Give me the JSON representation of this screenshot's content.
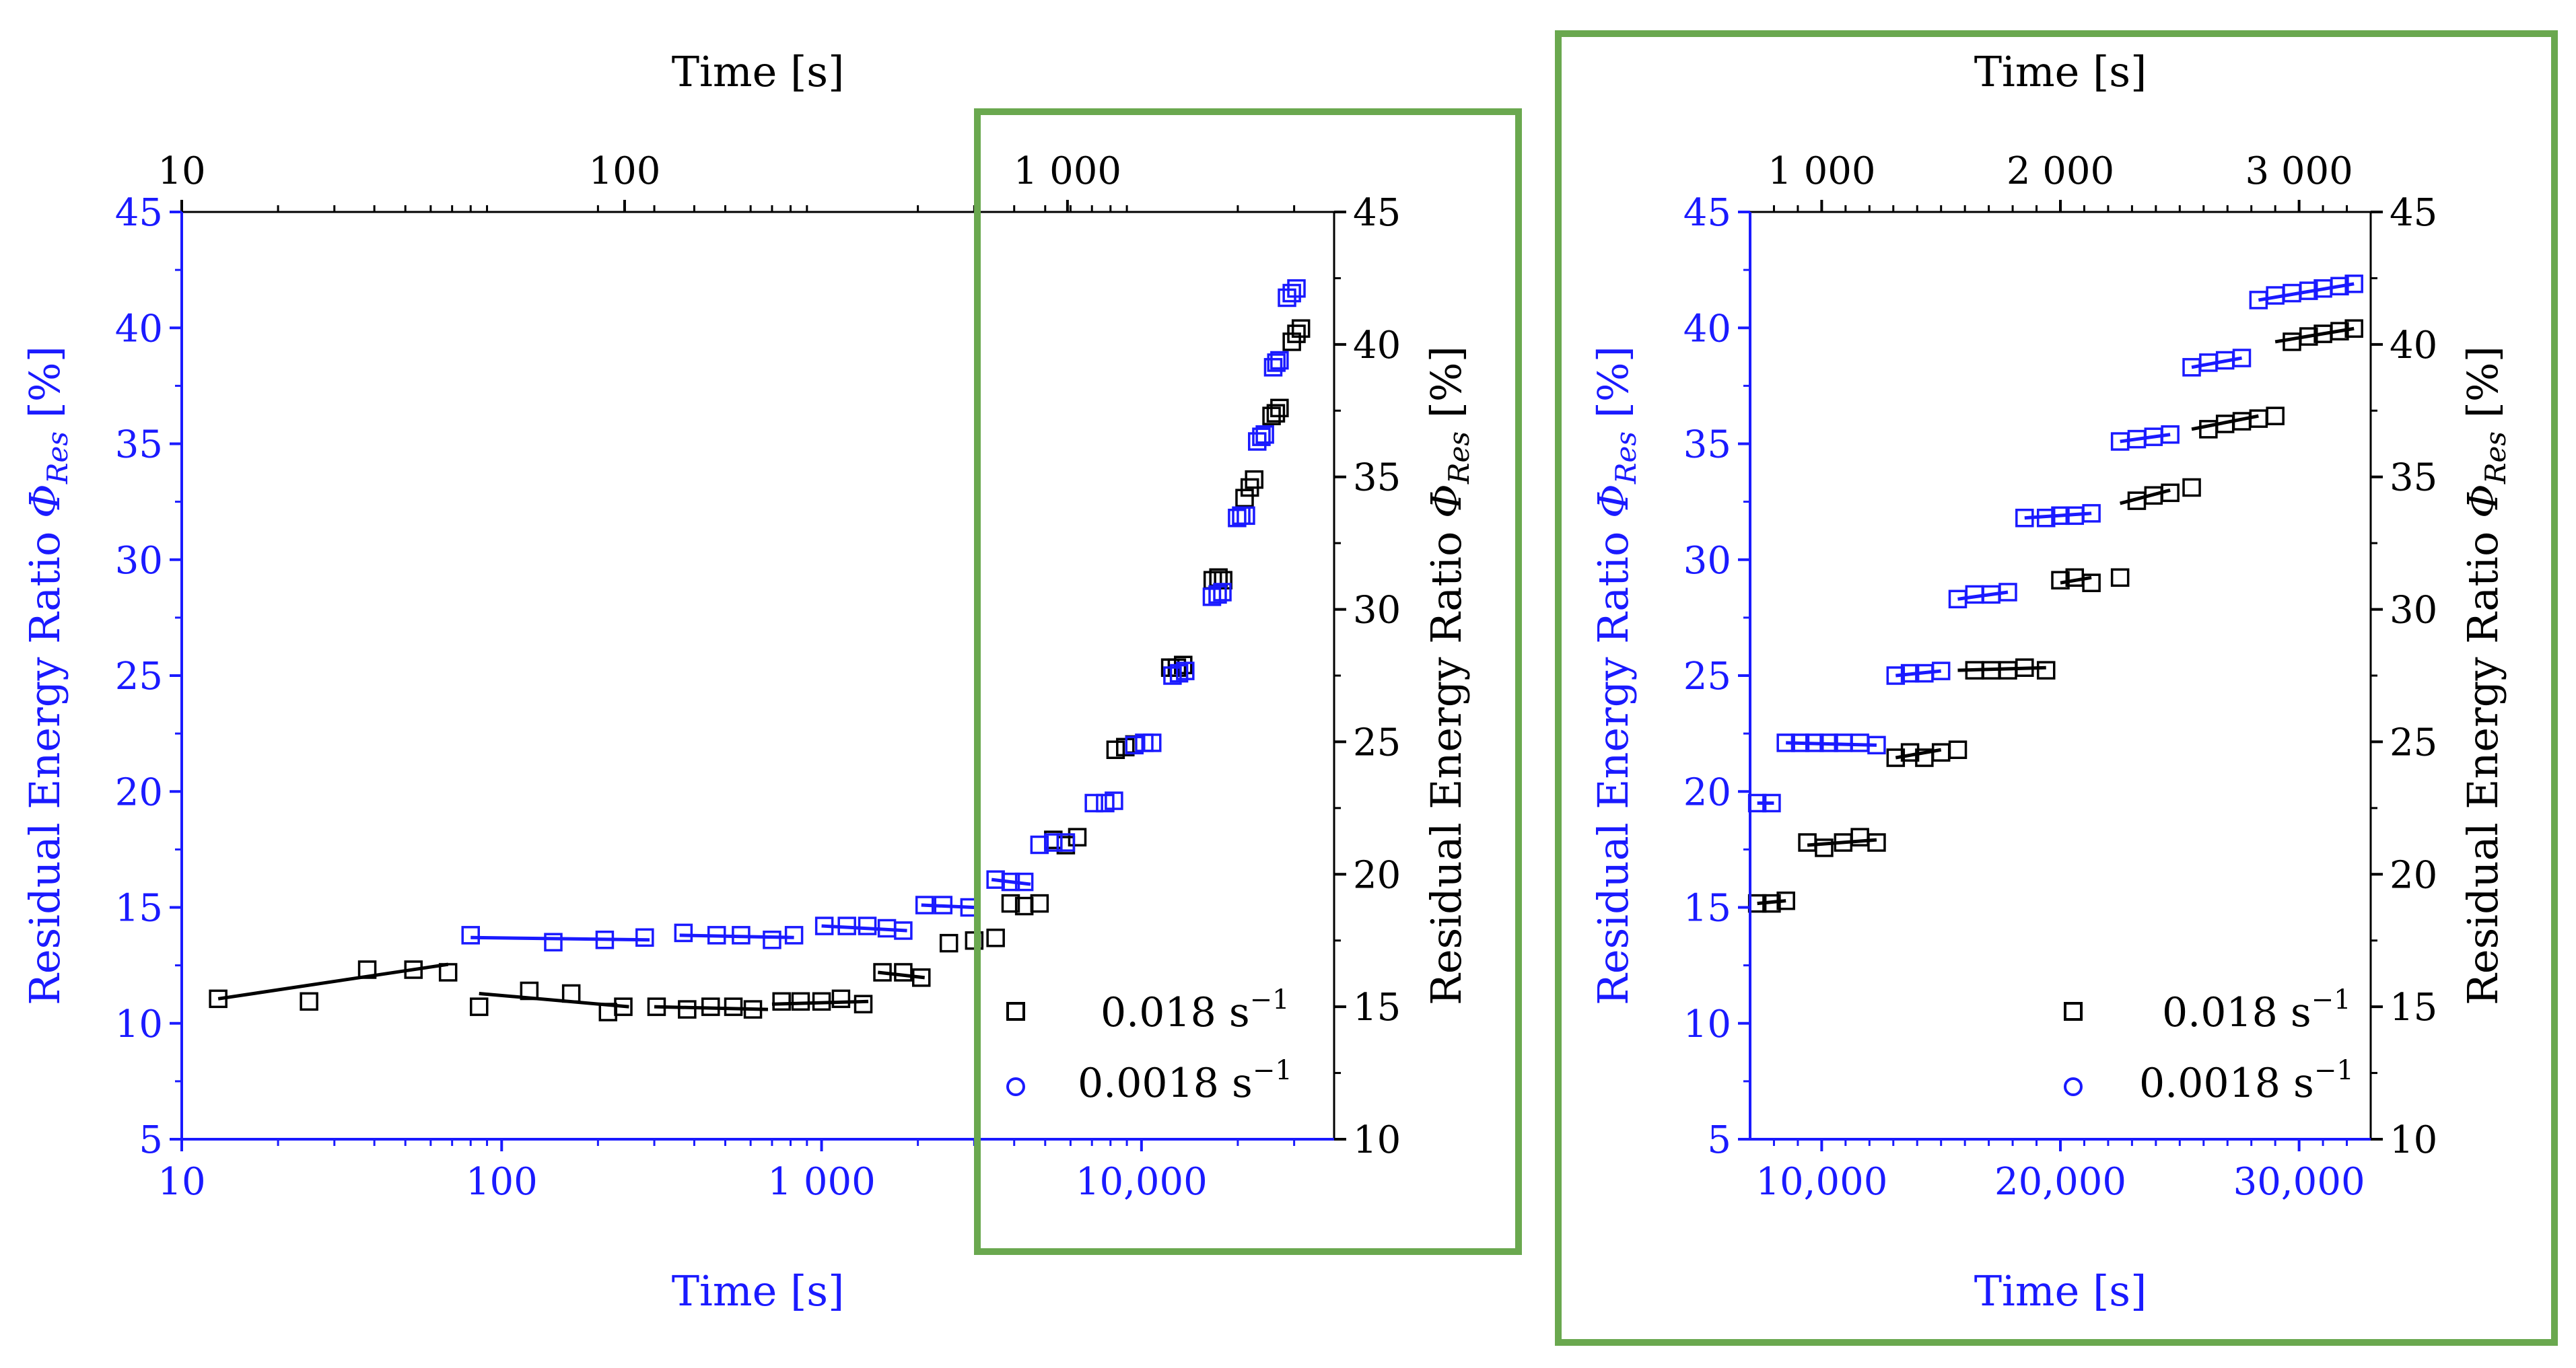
{
  "colors": {
    "blue": "#1a1aff",
    "black": "#000000",
    "highlight": "#6aa84f"
  },
  "chart_data": [
    {
      "id": "left",
      "type": "scatter",
      "scale": "log",
      "xlim": [
        10,
        40000
      ],
      "xlim_top": [
        10,
        4000
      ],
      "ylim_left": [
        5,
        45
      ],
      "ylim_right": [
        10,
        45
      ],
      "bottom_ticks": [
        10,
        100,
        1000,
        10000
      ],
      "bottom_tick_labels": [
        "10",
        "100",
        "1 000",
        "10,000"
      ],
      "top_ticks": [
        10,
        100,
        1000
      ],
      "top_tick_labels": [
        "10",
        "100",
        "1 000"
      ],
      "left_ticks": [
        5,
        10,
        15,
        20,
        25,
        30,
        35,
        40,
        45
      ],
      "right_ticks": [
        10,
        15,
        20,
        25,
        30,
        35,
        40,
        45
      ],
      "xlabel_bottom": "Time [s]",
      "xlabel_top": "Time [s]",
      "ylabel_left_main": "Residual Energy Ratio ",
      "ylabel_left_symbol": "Φ",
      "ylabel_left_sub": "Res",
      "ylabel_left_unit": " [%]",
      "ylabel_right_main": "Residual Energy Ratio ",
      "ylabel_right_symbol": "Φ",
      "ylabel_right_sub": "Res",
      "ylabel_right_unit": " [%]",
      "legend": [
        {
          "label": "0.018 s",
          "sup": "−1",
          "marker": "square",
          "color": "black"
        },
        {
          "label": "0.0018 s",
          "sup": "−1",
          "marker": "circle",
          "color": "blue"
        }
      ],
      "series": [
        {
          "name": "0.018 s⁻¹",
          "color": "black",
          "axis": "right",
          "x": [
            13,
            25,
            38,
            53,
            68,
            85,
            122,
            165,
            215,
            240,
            305,
            380,
            450,
            530,
            610,
            750,
            860,
            1000,
            1150,
            1350,
            1550,
            1800,
            2050,
            2500,
            3000,
            3500,
            3900,
            4300,
            4800,
            5300,
            5800,
            6300,
            8300,
            8900,
            9500,
            12300,
            12900,
            13500,
            16700,
            17400,
            18000,
            21000,
            21800,
            22500,
            25500,
            26300,
            27000,
            29500,
            30500,
            31500
          ],
          "y": [
            15.3,
            15.2,
            16.4,
            16.4,
            16.3,
            15.0,
            15.6,
            15.5,
            14.8,
            15.0,
            15.0,
            14.9,
            15.0,
            15.0,
            14.9,
            15.2,
            15.2,
            15.2,
            15.3,
            15.1,
            16.3,
            16.3,
            16.1,
            17.4,
            17.5,
            17.6,
            18.9,
            18.8,
            18.9,
            21.3,
            21.1,
            21.4,
            24.7,
            24.8,
            24.9,
            27.8,
            27.8,
            27.9,
            31.1,
            31.2,
            31.1,
            34.2,
            34.6,
            34.9,
            37.3,
            37.4,
            37.6,
            40.1,
            40.4,
            40.6
          ],
          "fit_segments": [
            [
              [
                13,
                15.3
              ],
              [
                68,
                16.6
              ]
            ],
            [
              [
                85,
                15.5
              ],
              [
                250,
                15.0
              ]
            ],
            [
              [
                300,
                15.0
              ],
              [
                680,
                14.9
              ]
            ],
            [
              [
                700,
                15.1
              ],
              [
                1400,
                15.2
              ]
            ],
            [
              [
                1500,
                16.3
              ],
              [
                2100,
                16.1
              ]
            ]
          ]
        },
        {
          "name": "0.0018 s⁻¹",
          "color": "blue",
          "axis": "left",
          "x": [
            80,
            145,
            210,
            280,
            370,
            470,
            560,
            700,
            820,
            1020,
            1200,
            1390,
            1600,
            1800,
            2100,
            2400,
            2900,
            3500,
            3900,
            4300,
            4800,
            5300,
            5800,
            7100,
            7700,
            8200,
            9500,
            10200,
            10800,
            12500,
            13100,
            13700,
            16600,
            17300,
            17900,
            19900,
            20500,
            21200,
            23000,
            23700,
            24300,
            25800,
            26400,
            27000,
            28500,
            29500,
            30500
          ],
          "y": [
            13.8,
            13.5,
            13.6,
            13.7,
            13.9,
            13.8,
            13.8,
            13.6,
            13.8,
            14.2,
            14.2,
            14.2,
            14.1,
            14.0,
            15.1,
            15.1,
            15.0,
            16.2,
            16.1,
            16.1,
            17.7,
            17.8,
            17.8,
            19.5,
            19.5,
            19.6,
            22.0,
            22.1,
            22.1,
            25.0,
            25.1,
            25.2,
            28.4,
            28.5,
            28.6,
            31.8,
            31.9,
            31.9,
            35.1,
            35.3,
            35.4,
            38.3,
            38.5,
            38.6,
            41.3,
            41.5,
            41.7
          ],
          "fit_segments": [
            [
              [
                80,
                13.7
              ],
              [
                290,
                13.6
              ]
            ],
            [
              [
                360,
                13.8
              ],
              [
                820,
                13.7
              ]
            ],
            [
              [
                1000,
                14.2
              ],
              [
                1850,
                14.0
              ]
            ],
            [
              [
                2050,
                15.1
              ],
              [
                3000,
                15.0
              ]
            ],
            [
              [
                3400,
                16.2
              ],
              [
                4500,
                16.0
              ]
            ]
          ]
        }
      ]
    },
    {
      "id": "right",
      "type": "scatter",
      "scale": "linear",
      "xlim": [
        7000,
        33000
      ],
      "ylim_left": [
        5,
        45
      ],
      "ylim_right": [
        10,
        45
      ],
      "bottom_ticks": [
        10000,
        20000,
        30000
      ],
      "bottom_tick_labels": [
        "10,000",
        "20,000",
        "30,000"
      ],
      "top_tick_labels": [
        "1 000",
        "2 000",
        "3 000"
      ],
      "left_ticks": [
        5,
        10,
        15,
        20,
        25,
        30,
        35,
        40,
        45
      ],
      "right_ticks": [
        10,
        15,
        20,
        25,
        30,
        35,
        40,
        45
      ],
      "xlabel_bottom": "Time [s]",
      "xlabel_top": "Time [s]",
      "ylabel_left_main": "Residual Energy Ratio ",
      "ylabel_left_symbol": "Φ",
      "ylabel_left_sub": "Res",
      "ylabel_left_unit": " [%]",
      "ylabel_right_main": "Residual Energy Ratio ",
      "ylabel_right_symbol": "Φ",
      "ylabel_right_sub": "Res",
      "ylabel_right_unit": " [%]",
      "legend": [
        {
          "label": "0.018 s",
          "sup": "−1",
          "marker": "square",
          "color": "black"
        },
        {
          "label": "0.0018 s",
          "sup": "−1",
          "marker": "circle",
          "color": "blue"
        }
      ],
      "series": [
        {
          "name": "0.018 s⁻¹",
          "color": "black",
          "axis": "right",
          "x": [
            7300,
            7900,
            8500,
            9400,
            10100,
            10900,
            11600,
            12300,
            13100,
            13700,
            14300,
            15000,
            15700,
            16400,
            17100,
            17800,
            18500,
            19400,
            20000,
            20600,
            21300,
            22500,
            23200,
            23900,
            24600,
            25500,
            26200,
            26900,
            27600,
            28300,
            29000,
            29700,
            30400,
            31000,
            31700,
            32300
          ],
          "y": [
            18.9,
            18.9,
            19.0,
            21.2,
            21.0,
            21.2,
            21.4,
            21.2,
            24.4,
            24.6,
            24.4,
            24.6,
            24.7,
            27.7,
            27.7,
            27.7,
            27.8,
            27.7,
            31.1,
            31.2,
            31.0,
            31.2,
            34.1,
            34.3,
            34.4,
            34.6,
            36.8,
            37.0,
            37.1,
            37.2,
            37.3,
            40.1,
            40.3,
            40.4,
            40.5,
            40.6
          ],
          "fit_segments": [
            [
              [
                7300,
                18.9
              ],
              [
                8500,
                19.0
              ]
            ],
            [
              [
                9400,
                21.1
              ],
              [
                12300,
                21.3
              ]
            ],
            [
              [
                13100,
                24.4
              ],
              [
                15000,
                24.7
              ]
            ],
            [
              [
                15700,
                27.7
              ],
              [
                19400,
                27.8
              ]
            ],
            [
              [
                20000,
                31.0
              ],
              [
                21300,
                31.2
              ]
            ],
            [
              [
                22500,
                34.0
              ],
              [
                24600,
                34.5
              ]
            ],
            [
              [
                25500,
                36.8
              ],
              [
                28300,
                37.3
              ]
            ],
            [
              [
                29000,
                40.1
              ],
              [
                32300,
                40.6
              ]
            ]
          ]
        },
        {
          "name": "0.0018 s⁻¹",
          "color": "blue",
          "axis": "left",
          "x": [
            7300,
            7900,
            8500,
            9100,
            9700,
            10300,
            10900,
            11600,
            12300,
            13100,
            13700,
            14300,
            15000,
            15700,
            16400,
            17100,
            17800,
            18500,
            19400,
            20000,
            20600,
            21300,
            22500,
            23200,
            23900,
            24600,
            25500,
            26200,
            26900,
            27600,
            28300,
            29000,
            29700,
            30400,
            31000,
            31700,
            32300
          ],
          "y": [
            19.5,
            19.5,
            22.1,
            22.1,
            22.1,
            22.1,
            22.1,
            22.1,
            22.0,
            25.0,
            25.1,
            25.1,
            25.2,
            28.3,
            28.5,
            28.5,
            28.6,
            31.8,
            31.8,
            31.9,
            31.9,
            32.0,
            35.1,
            35.2,
            35.3,
            35.4,
            38.3,
            38.5,
            38.6,
            38.7,
            41.2,
            41.4,
            41.5,
            41.6,
            41.7,
            41.8,
            41.9
          ],
          "fit_segments": [
            [
              [
                7300,
                19.5
              ],
              [
                8000,
                19.5
              ]
            ],
            [
              [
                8500,
                22.1
              ],
              [
                12300,
                22.0
              ]
            ],
            [
              [
                13100,
                25.0
              ],
              [
                15000,
                25.2
              ]
            ],
            [
              [
                15700,
                28.3
              ],
              [
                17800,
                28.6
              ]
            ],
            [
              [
                18500,
                31.8
              ],
              [
                21300,
                32.0
              ]
            ],
            [
              [
                22500,
                35.1
              ],
              [
                24600,
                35.4
              ]
            ],
            [
              [
                25500,
                38.3
              ],
              [
                27600,
                38.7
              ]
            ],
            [
              [
                28300,
                41.2
              ],
              [
                32300,
                41.9
              ]
            ]
          ]
        }
      ]
    }
  ]
}
